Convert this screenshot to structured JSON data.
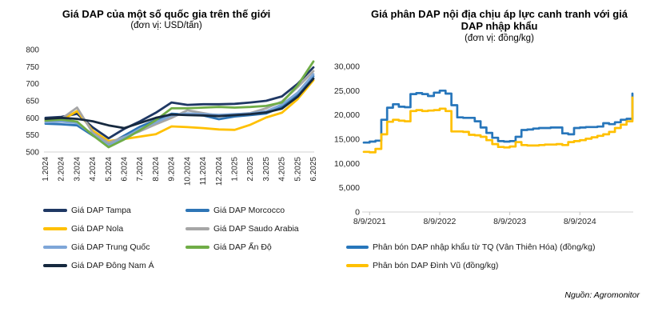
{
  "source": "Nguồn: Agromonitor",
  "chart_data": [
    {
      "type": "line",
      "title": "Giá DAP của một số quốc gia trên thế giới",
      "subtitle": "(đơn vị: USD/tấn)",
      "unit": "USD/tấn",
      "grid": false,
      "legend_position": "bottom",
      "ylim": [
        500,
        800
      ],
      "yticks": [
        800,
        750,
        700,
        650,
        600,
        550,
        500
      ],
      "categories": [
        "1.2024",
        "2.2024",
        "3.2024",
        "4.2024",
        "5.2024",
        "6.2024",
        "7.2024",
        "8.2024",
        "9.2024",
        "10.2024",
        "11.2024",
        "12.2024",
        "1.2025",
        "2.2025",
        "3.2025",
        "4.2025",
        "5.2025",
        "6.2025"
      ],
      "series": [
        {
          "name": "Giá DAP Tampa",
          "color": "#1f3864",
          "values": [
            600,
            603,
            612,
            572,
            540,
            568,
            590,
            615,
            645,
            638,
            640,
            640,
            641,
            645,
            650,
            663,
            700,
            748
          ]
        },
        {
          "name": "Giá DAP Morcocco",
          "color": "#2e75b6",
          "values": [
            583,
            581,
            578,
            548,
            522,
            548,
            574,
            594,
            612,
            610,
            607,
            596,
            604,
            608,
            613,
            632,
            670,
            722
          ]
        },
        {
          "name": "Giá DAP Nola",
          "color": "#ffc000",
          "values": [
            590,
            592,
            620,
            562,
            532,
            538,
            545,
            552,
            575,
            573,
            570,
            566,
            565,
            580,
            601,
            615,
            655,
            710
          ]
        },
        {
          "name": "Giá DAP Saudo Arabia",
          "color": "#a6a6a6",
          "values": [
            593,
            597,
            630,
            556,
            527,
            544,
            561,
            581,
            600,
            622,
            614,
            606,
            610,
            614,
            628,
            648,
            690,
            737
          ]
        },
        {
          "name": "Giá DAP Trung Quốc",
          "color": "#7ea6d8",
          "values": [
            587,
            589,
            585,
            551,
            519,
            542,
            568,
            587,
            607,
            613,
            611,
            609,
            611,
            613,
            619,
            639,
            674,
            728
          ]
        },
        {
          "name": "Giá DAP Ấn Độ",
          "color": "#70ad47",
          "values": [
            592,
            595,
            589,
            549,
            514,
            537,
            564,
            593,
            628,
            628,
            630,
            632,
            630,
            632,
            635,
            645,
            695,
            765
          ]
        },
        {
          "name": "Giá DAP Đông Nam Á",
          "color": "#16293f",
          "values": [
            597,
            600,
            597,
            590,
            578,
            570,
            585,
            600,
            610,
            608,
            607,
            605,
            608,
            611,
            616,
            627,
            662,
            715
          ]
        }
      ]
    },
    {
      "type": "line",
      "line_style": "step",
      "title": "Giá phân DAP nội địa chịu áp lực canh tranh với giá DAP nhập khẩu",
      "subtitle": "(đơn vị: đồng/kg)",
      "unit": "đồng/kg",
      "grid": false,
      "legend_position": "bottom",
      "ylim": [
        0,
        30000
      ],
      "yticks": [
        30000,
        25000,
        20000,
        15000,
        10000,
        5000,
        0
      ],
      "x": [
        "8/2021",
        "9/2021",
        "10/2021",
        "11/2021",
        "12/2021",
        "1/2022",
        "2/2022",
        "3/2022",
        "4/2022",
        "5/2022",
        "6/2022",
        "7/2022",
        "8/2022",
        "9/2022",
        "10/2022",
        "11/2022",
        "12/2022",
        "1/2023",
        "2/2023",
        "3/2023",
        "4/2023",
        "5/2023",
        "6/2023",
        "7/2023",
        "8/2023",
        "9/2023",
        "10/2023",
        "11/2023",
        "12/2023",
        "1/2024",
        "2/2024",
        "3/2024",
        "4/2024",
        "5/2024",
        "6/2024",
        "7/2024",
        "8/2024",
        "9/2024",
        "10/2024",
        "11/2024",
        "12/2024",
        "1/2025",
        "2/2025",
        "3/2025",
        "4/2025",
        "5/2025",
        "6/2025"
      ],
      "xticks": [
        {
          "index": 1,
          "label": "8/9/2021"
        },
        {
          "index": 13,
          "label": "8/9/2022"
        },
        {
          "index": 25,
          "label": "8/9/2023"
        },
        {
          "index": 37,
          "label": "8/9/2024"
        }
      ],
      "series": [
        {
          "name": "Phân bón DAP nhập khẩu từ TQ (Vân Thiên Hóa) (đồng/kg)",
          "color": "#2776bb",
          "values": [
            14300,
            14500,
            14700,
            19000,
            21500,
            22200,
            21700,
            21600,
            24300,
            24500,
            24300,
            23900,
            24600,
            25000,
            24400,
            22000,
            19500,
            19400,
            19400,
            18700,
            17400,
            16300,
            15300,
            14600,
            14500,
            14600,
            15500,
            16900,
            17000,
            17200,
            17300,
            17300,
            17400,
            17400,
            16200,
            16000,
            17300,
            17400,
            17500,
            17500,
            17600,
            18300,
            18100,
            18500,
            19000,
            19200,
            24400
          ]
        },
        {
          "name": "Phân bón DAP Đình Vũ (đồng/kg)",
          "color": "#ffc000",
          "values": [
            12400,
            12300,
            13000,
            16000,
            18600,
            19000,
            18800,
            18700,
            20800,
            21000,
            20800,
            20900,
            21000,
            21300,
            20800,
            16600,
            16600,
            16500,
            15900,
            15800,
            15500,
            14800,
            14000,
            13400,
            13300,
            13500,
            14400,
            13800,
            13700,
            13700,
            13800,
            13900,
            13900,
            14000,
            13800,
            14400,
            14600,
            14800,
            15100,
            15400,
            15700,
            16000,
            16500,
            17300,
            18000,
            18700,
            23600
          ]
        }
      ]
    }
  ]
}
